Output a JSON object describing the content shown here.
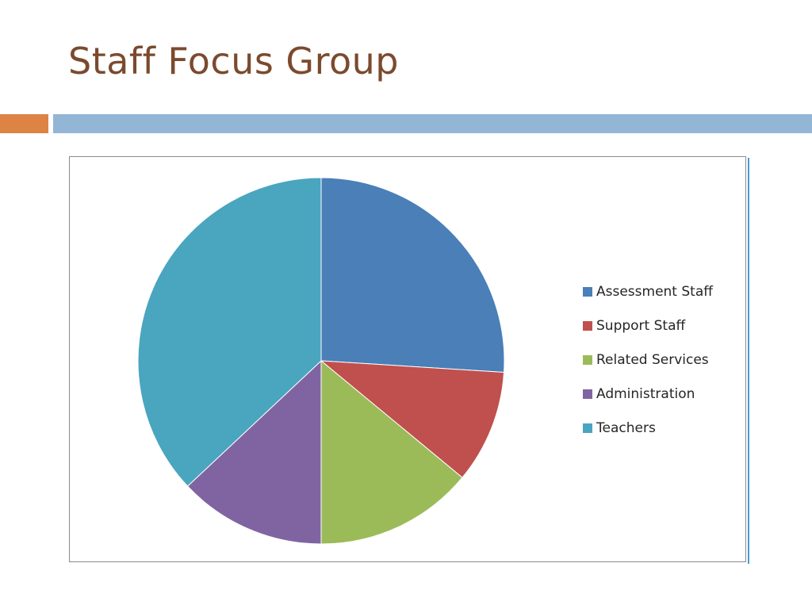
{
  "slide": {
    "title": "Staff Focus Group"
  },
  "theme": {
    "title_color": "#7b4a2e",
    "accent_orange": "#dd8444",
    "accent_blue": "#93b6d6"
  },
  "chart_data": {
    "type": "pie",
    "title": "",
    "legend_position": "right",
    "categories": [
      "Assessment Staff",
      "Support Staff",
      "Related Services",
      "Administration",
      "Teachers"
    ],
    "values": [
      26,
      10,
      14,
      13,
      37
    ],
    "colors": [
      "#4a7fb8",
      "#c0504d",
      "#9bbb59",
      "#8064a2",
      "#4aa5bf"
    ]
  }
}
